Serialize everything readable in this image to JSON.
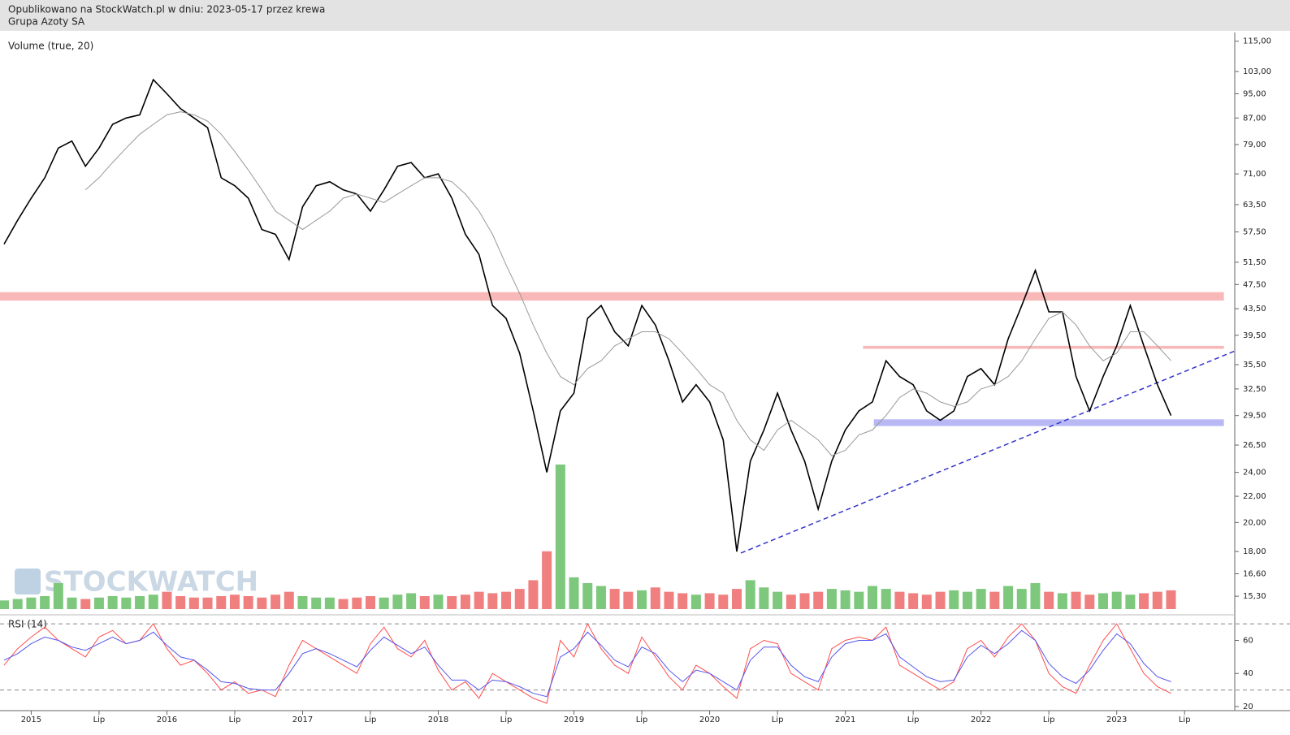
{
  "header": {
    "title": "Opublikowano na StockWatch.pl w dniu: 2023-05-17 przez krewa",
    "subtitle": "Grupa Azoty SA"
  },
  "watermark": "STOCKWATCH",
  "chart_data": [
    {
      "type": "line",
      "log_scale": true,
      "x": [
        2014.8,
        2014.9,
        2015,
        2015.1,
        2015.2,
        2015.3,
        2015.4,
        2015.5,
        2015.6,
        2015.7,
        2015.8,
        2015.9,
        2016,
        2016.1,
        2016.2,
        2016.3,
        2016.4,
        2016.5,
        2016.6,
        2016.7,
        2016.8,
        2016.9,
        2017,
        2017.1,
        2017.2,
        2017.3,
        2017.4,
        2017.5,
        2017.6,
        2017.7,
        2017.8,
        2017.9,
        2018,
        2018.1,
        2018.2,
        2018.3,
        2018.4,
        2018.5,
        2018.6,
        2018.7,
        2018.8,
        2018.9,
        2019,
        2019.1,
        2019.2,
        2019.3,
        2019.4,
        2019.5,
        2019.6,
        2019.7,
        2019.8,
        2019.9,
        2020,
        2020.1,
        2020.2,
        2020.3,
        2020.4,
        2020.5,
        2020.6,
        2020.7,
        2020.8,
        2020.9,
        2021,
        2021.1,
        2021.2,
        2021.3,
        2021.4,
        2021.5,
        2021.6,
        2021.7,
        2021.8,
        2021.9,
        2022,
        2022.1,
        2022.2,
        2022.3,
        2022.4,
        2022.5,
        2022.6,
        2022.7,
        2022.8,
        2022.9,
        2023,
        2023.1,
        2023.2,
        2023.3,
        2023.4
      ],
      "series": [
        {
          "color": "#000000",
          "values": [
            55,
            60,
            65,
            70,
            78,
            80,
            73,
            78,
            85,
            87,
            88,
            100,
            95,
            90,
            87,
            84,
            70,
            68,
            65,
            58,
            57,
            52,
            63,
            68,
            69,
            67,
            66,
            62,
            67,
            73,
            74,
            70,
            71,
            65,
            57,
            53,
            44,
            42,
            37,
            30,
            24,
            30,
            32,
            42,
            44,
            40,
            38,
            44,
            41,
            36,
            31,
            33,
            31,
            27,
            18,
            25,
            28,
            32,
            28,
            25,
            21,
            25,
            28,
            30,
            31,
            36,
            34,
            33,
            30,
            29,
            30,
            34,
            35,
            33,
            39,
            44,
            50,
            43,
            43,
            34,
            30,
            34,
            38,
            44,
            38,
            33,
            29.5
          ]
        },
        {
          "color": "#999999",
          "values": [
            null,
            null,
            null,
            null,
            null,
            null,
            67,
            70,
            74,
            78,
            82,
            85,
            88,
            89,
            88,
            86,
            82,
            77,
            72,
            67,
            62,
            60,
            58,
            60,
            62,
            65,
            66,
            65,
            64,
            66,
            68,
            70,
            70,
            69,
            66,
            62,
            57,
            51,
            46,
            41,
            37,
            34,
            33,
            35,
            36,
            38,
            39,
            40,
            40,
            39,
            37,
            35,
            33,
            32,
            29,
            27,
            26,
            28,
            29,
            28,
            27,
            25.5,
            26,
            27.5,
            28,
            29.5,
            31.5,
            32.5,
            32,
            31,
            30.5,
            31,
            32.5,
            33,
            34,
            36,
            39,
            42,
            43,
            41,
            38,
            36,
            37,
            40,
            40,
            38,
            36
          ]
        }
      ],
      "xlim": [
        2014.77,
        2023.87
      ],
      "ylim": [
        14.6,
        118.7
      ],
      "yticks": [
        {
          "value": 115,
          "label": "115,00"
        },
        {
          "value": 103,
          "label": "103,00"
        },
        {
          "value": 95,
          "label": "95,00"
        },
        {
          "value": 87,
          "label": "87,00"
        },
        {
          "value": 79,
          "label": "79,00"
        },
        {
          "value": 71,
          "label": "71,00"
        },
        {
          "value": 63.5,
          "label": "63,50"
        },
        {
          "value": 57.5,
          "label": "57,50"
        },
        {
          "value": 51.5,
          "label": "51,50"
        },
        {
          "value": 47.5,
          "label": "47,50"
        },
        {
          "value": 43.5,
          "label": "43,50"
        },
        {
          "value": 39.5,
          "label": "39,50"
        },
        {
          "value": 35.5,
          "label": "35,50"
        },
        {
          "value": 32.5,
          "label": "32,50"
        },
        {
          "value": 29.5,
          "label": "29,50"
        },
        {
          "value": 26.5,
          "label": "26,50"
        },
        {
          "value": 24,
          "label": "24,00"
        },
        {
          "value": 22,
          "label": "22,00"
        },
        {
          "value": 20,
          "label": "20,00"
        },
        {
          "value": 18,
          "label": "18,00"
        },
        {
          "value": 16.6,
          "label": "16,60"
        },
        {
          "value": 15.3,
          "label": "15,30"
        }
      ],
      "bands": [
        {
          "range": [
            44.8,
            46.2
          ],
          "x": [
            2014.77,
            2023.79
          ],
          "color": "#f9b8b8"
        },
        {
          "range": [
            37.6,
            38.0
          ],
          "x": [
            2021.13,
            2023.79
          ],
          "color": "#f9b8b8"
        },
        {
          "range": [
            28.4,
            29.1
          ],
          "x": [
            2021.21,
            2023.79
          ],
          "color": "#b8b8f5"
        }
      ],
      "trendline": {
        "x": [
          2020.23,
          2023.87
        ],
        "y": [
          17.9,
          37.3
        ],
        "color": "#3333cc"
      }
    },
    {
      "type": "bar",
      "title": "Volume (true, 20)",
      "x": [
        2014.8,
        2014.9,
        2015,
        2015.1,
        2015.2,
        2015.3,
        2015.4,
        2015.5,
        2015.6,
        2015.7,
        2015.8,
        2015.9,
        2016,
        2016.1,
        2016.2,
        2016.3,
        2016.4,
        2016.5,
        2016.6,
        2016.7,
        2016.8,
        2016.9,
        2017,
        2017.1,
        2017.2,
        2017.3,
        2017.4,
        2017.5,
        2017.6,
        2017.7,
        2017.8,
        2017.9,
        2018,
        2018.1,
        2018.2,
        2018.3,
        2018.4,
        2018.5,
        2018.6,
        2018.7,
        2018.8,
        2018.9,
        2019,
        2019.1,
        2019.2,
        2019.3,
        2019.4,
        2019.5,
        2019.6,
        2019.7,
        2019.8,
        2019.9,
        2020,
        2020.1,
        2020.2,
        2020.3,
        2020.4,
        2020.5,
        2020.6,
        2020.7,
        2020.8,
        2020.9,
        2021,
        2021.1,
        2021.2,
        2021.3,
        2021.4,
        2021.5,
        2021.6,
        2021.7,
        2021.8,
        2021.9,
        2022,
        2022.1,
        2022.2,
        2022.3,
        2022.4,
        2022.5,
        2022.6,
        2022.7,
        2022.8,
        2022.9,
        2023,
        2023.1,
        2023.2,
        2023.3,
        2023.4
      ],
      "values": [
        6,
        7,
        8,
        9,
        18,
        8,
        7,
        8,
        9,
        8,
        9,
        10,
        12,
        9,
        8,
        8,
        9,
        10,
        9,
        8,
        10,
        12,
        9,
        8,
        8,
        7,
        8,
        9,
        8,
        10,
        11,
        9,
        10,
        9,
        10,
        12,
        11,
        12,
        14,
        20,
        40,
        100,
        22,
        18,
        16,
        14,
        12,
        13,
        15,
        12,
        11,
        10,
        11,
        10,
        14,
        20,
        15,
        12,
        10,
        11,
        12,
        14,
        13,
        12,
        16,
        14,
        12,
        11,
        10,
        12,
        13,
        12,
        14,
        12,
        16,
        14,
        18,
        12,
        11,
        12,
        10,
        11,
        12,
        10,
        11,
        12,
        13
      ],
      "colors": {
        "up": "#7dc87d",
        "down": "#f08080"
      },
      "xlim": [
        2014.77,
        2023.87
      ],
      "ylim": [
        0,
        100
      ]
    },
    {
      "type": "line",
      "title": "RSI (14)",
      "x": [
        2014.8,
        2014.9,
        2015,
        2015.1,
        2015.2,
        2015.3,
        2015.4,
        2015.5,
        2015.6,
        2015.7,
        2015.8,
        2015.9,
        2016,
        2016.1,
        2016.2,
        2016.3,
        2016.4,
        2016.5,
        2016.6,
        2016.7,
        2016.8,
        2016.9,
        2017,
        2017.1,
        2017.2,
        2017.3,
        2017.4,
        2017.5,
        2017.6,
        2017.7,
        2017.8,
        2017.9,
        2018,
        2018.1,
        2018.2,
        2018.3,
        2018.4,
        2018.5,
        2018.6,
        2018.7,
        2018.8,
        2018.9,
        2019,
        2019.1,
        2019.2,
        2019.3,
        2019.4,
        2019.5,
        2019.6,
        2019.7,
        2019.8,
        2019.9,
        2020,
        2020.1,
        2020.2,
        2020.3,
        2020.4,
        2020.5,
        2020.6,
        2020.7,
        2020.8,
        2020.9,
        2021,
        2021.1,
        2021.2,
        2021.3,
        2021.4,
        2021.5,
        2021.6,
        2021.7,
        2021.8,
        2021.9,
        2022,
        2022.1,
        2022.2,
        2022.3,
        2022.4,
        2022.5,
        2022.6,
        2022.7,
        2022.8,
        2022.9,
        2023,
        2023.1,
        2023.2,
        2023.3,
        2023.4
      ],
      "series": [
        {
          "color": "#ff4d4d",
          "values": [
            45,
            55,
            62,
            68,
            60,
            55,
            50,
            62,
            66,
            58,
            60,
            70,
            55,
            45,
            48,
            40,
            30,
            35,
            28,
            30,
            26,
            45,
            60,
            55,
            50,
            45,
            40,
            58,
            68,
            55,
            50,
            60,
            42,
            30,
            35,
            25,
            40,
            35,
            30,
            25,
            22,
            60,
            50,
            70,
            55,
            45,
            40,
            62,
            50,
            38,
            30,
            45,
            40,
            32,
            25,
            55,
            60,
            58,
            40,
            35,
            30,
            55,
            60,
            62,
            60,
            68,
            45,
            40,
            35,
            30,
            35,
            55,
            60,
            50,
            62,
            70,
            60,
            40,
            32,
            28,
            45,
            60,
            70,
            55,
            40,
            32,
            28
          ]
        },
        {
          "color": "#5555ee",
          "values": [
            48,
            52,
            58,
            62,
            60,
            56,
            54,
            58,
            62,
            58,
            60,
            65,
            57,
            50,
            48,
            42,
            35,
            34,
            31,
            30,
            30,
            40,
            52,
            55,
            52,
            48,
            44,
            54,
            62,
            57,
            52,
            56,
            45,
            36,
            36,
            30,
            36,
            35,
            32,
            28,
            26,
            50,
            55,
            65,
            57,
            48,
            44,
            56,
            52,
            42,
            35,
            42,
            40,
            35,
            30,
            48,
            56,
            56,
            45,
            38,
            35,
            50,
            58,
            60,
            60,
            64,
            50,
            44,
            38,
            35,
            36,
            50,
            57,
            52,
            58,
            66,
            60,
            46,
            38,
            34,
            42,
            54,
            64,
            58,
            46,
            38,
            35
          ]
        }
      ],
      "xlim": [
        2014.77,
        2023.87
      ],
      "ylim": [
        19,
        74
      ],
      "yticks": [
        20,
        40,
        60
      ],
      "guides": [
        30,
        70
      ],
      "xticks": [
        2015,
        {
          "value": 2015.5,
          "label": "Lip"
        },
        2016,
        {
          "value": 2016.5,
          "label": "Lip"
        },
        2017,
        {
          "value": 2017.5,
          "label": "Lip"
        },
        2018,
        {
          "value": 2018.5,
          "label": "Lip"
        },
        2019,
        {
          "value": 2019.5,
          "label": "Lip"
        },
        2020,
        {
          "value": 2020.5,
          "label": "Lip"
        },
        2021,
        {
          "value": 2021.5,
          "label": "Lip"
        },
        2022,
        {
          "value": 2022.5,
          "label": "Lip"
        },
        2023,
        {
          "value": 2023.5,
          "label": "Lip"
        }
      ]
    }
  ]
}
